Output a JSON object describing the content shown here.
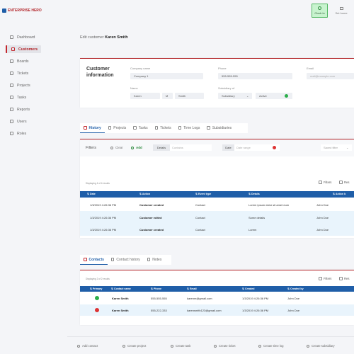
{
  "app": {
    "logo_text": "ENTERPRISE HERO"
  },
  "header": {
    "clock_in": "Clock in",
    "set_home": "Set home"
  },
  "sidebar": {
    "items": [
      {
        "label": "Dashboard",
        "icon": "dashboard-icon"
      },
      {
        "label": "Customers",
        "icon": "customers-icon",
        "active": true
      },
      {
        "label": "Boards",
        "icon": "boards-icon"
      },
      {
        "label": "Tickets",
        "icon": "tickets-icon"
      },
      {
        "label": "Projects",
        "icon": "projects-icon"
      },
      {
        "label": "Tasks",
        "icon": "tasks-icon"
      },
      {
        "label": "Reports",
        "icon": "reports-icon"
      },
      {
        "label": "Users",
        "icon": "users-icon"
      },
      {
        "label": "Roles",
        "icon": "roles-icon"
      }
    ]
  },
  "breadcrumb": {
    "prefix": "Edit customer",
    "name": "Karen Smith"
  },
  "customer_info": {
    "title_line1": "Customer",
    "title_line2": "information",
    "company_name_label": "Company name",
    "company_name_value": "Company 1",
    "phone_label": "Phone",
    "phone_value": "555-555-555",
    "email_label": "Email",
    "email_placeholder": "mail@example.com",
    "name_label": "Name",
    "first_name": "Karen",
    "middle_initial": "M",
    "last_name": "Smith",
    "subsidiary_label": "Subsidiary of",
    "subsidiary_value": "Subsidiary",
    "active_label": "Active",
    "active_colors": {
      "check": "#2bae4a"
    }
  },
  "history_tabs": [
    "History",
    "Projects",
    "Tasks",
    "Tickets",
    "Time Logs",
    "Subsidiaries"
  ],
  "filters": {
    "title": "Filters",
    "clear": "Clear",
    "add": "Add",
    "details_label": "Details",
    "details_placeholder": "Contains",
    "date_label": "Date",
    "date_placeholder": "Date range",
    "saved_filter": "Saved filter"
  },
  "history_table": {
    "count_text": "Displaying 4 of 4 results",
    "filters_button": "Filters",
    "reset_button": "Res",
    "columns": [
      "Date",
      "Action",
      "Event type",
      "Details",
      "Action b"
    ],
    "rows": [
      {
        "date": "1/3/2019 4:26:36 PM",
        "action": "Customer created",
        "event_type": "Contact",
        "details": "Lorem ipsum dolor sit amet eum",
        "by": "John Doe"
      },
      {
        "date": "1/3/2019 4:26:36 PM",
        "action": "Customer edited",
        "event_type": "Contact",
        "details": "Some details",
        "by": "John Doe"
      },
      {
        "date": "1/3/2019 4:26:36 PM",
        "action": "Contact created",
        "event_type": "Contact",
        "details": "Another detail",
        "by": "John Doe"
      },
      {
        "date": "1/3/2019 4:26:36 PM",
        "action": "Customer created",
        "event_type": "Contact",
        "details": "Lorem",
        "by": "John Doe"
      }
    ]
  },
  "contact_tabs": [
    "Contacts",
    "Contact history",
    "Notes"
  ],
  "contacts_table": {
    "count_text": "Displaying 2 of 2 results",
    "filters_button": "Filters",
    "reset_button": "Res",
    "columns": [
      "Primary",
      "Contact name",
      "Phone",
      "Email",
      "Created",
      "Created by"
    ],
    "rows": [
      {
        "primary": true,
        "name": "Karen Smith",
        "phone": "555-555-555",
        "email": "karenm@gmail.com",
        "created": "1/3/2019 4:26:36 PM",
        "by": "John Doe"
      },
      {
        "primary": false,
        "name": "Karen Smith",
        "phone": "555-222-333",
        "email": "karensmith123@gmail.com",
        "created": "1/3/2019 4:26:36 PM",
        "by": "John Doe"
      }
    ]
  },
  "footer": {
    "buttons": [
      "Add contact",
      "Create project",
      "Create task",
      "Create ticket",
      "Create time log",
      "Create subsidiary"
    ]
  },
  "colors": {
    "brand": "#b3262b",
    "table_header": "#1f5ea8",
    "row_alt": "#e9f4fc",
    "clock_in_bg": "#c8f3cf"
  }
}
